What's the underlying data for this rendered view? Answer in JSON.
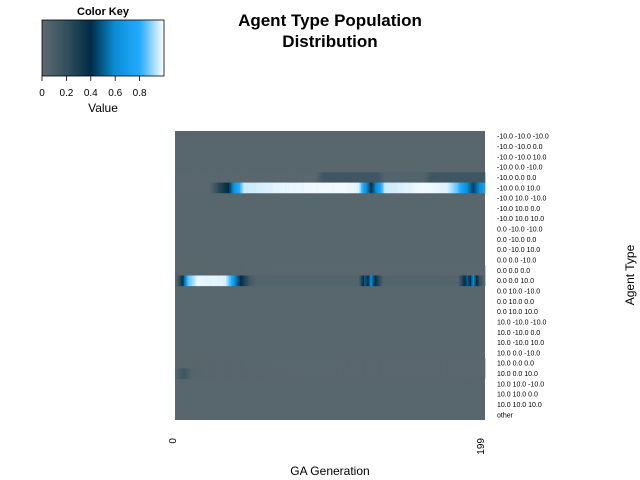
{
  "chart_data": {
    "type": "heatmap",
    "title_lines": [
      "Agent Type Population",
      "Distribution"
    ],
    "xlabel": "GA Generation",
    "ylabel": "Agent Type",
    "x_tick_labels": [
      "0",
      "199"
    ],
    "x_range": [
      0,
      199
    ],
    "color_key": {
      "title": "Color Key",
      "label": "Value",
      "ticks": [
        "0",
        "0.2",
        "0.4",
        "0.6",
        "0.8"
      ],
      "range": [
        0,
        1
      ],
      "colors": [
        "#5f6a70",
        "#33505e",
        "#002b45",
        "#0a8fd6",
        "#22aaff",
        "#ffffff"
      ]
    },
    "row_labels": [
      "-10.0 -10.0 -10.0",
      "-10.0 -10.0 0.0",
      "-10.0 -10.0 10.0",
      "-10.0 0.0 -10.0",
      "-10.0 0.0 0.0",
      "-10.0 0.0 10.0",
      "-10.0 10.0 -10.0",
      "-10.0 10.0 0.0",
      "-10.0 10.0 10.0",
      "0.0 -10.0 -10.0",
      "0.0 -10.0 0.0",
      "0.0 -10.0 10.0",
      "0.0 0.0 -10.0",
      "0.0 0.0 0.0",
      "0.0 0.0 10.0",
      "0.0 10.0 -10.0",
      "0.0 10.0 0.0",
      "0.0 10.0 10.0",
      "10.0 -10.0 -10.0",
      "10.0 -10.0 0.0",
      "10.0 -10.0 10.0",
      "10.0 0.0 -10.0",
      "10.0 0.0 0.0",
      "10.0 0.0 10.0",
      "10.0 10.0 -10.0",
      "10.0 10.0 0.0",
      "10.0 10.0 10.0",
      "other"
    ],
    "row_profiles": [
      {
        "row": 4,
        "points": [
          [
            0,
            0.02
          ],
          [
            90,
            0.02
          ],
          [
            95,
            0.15
          ],
          [
            130,
            0.15
          ],
          [
            135,
            0.05
          ],
          [
            160,
            0.05
          ],
          [
            165,
            0.15
          ],
          [
            199,
            0.15
          ]
        ]
      },
      {
        "row": 5,
        "points": [
          [
            0,
            0.02
          ],
          [
            22,
            0.02
          ],
          [
            28,
            0.25
          ],
          [
            34,
            0.4
          ],
          [
            38,
            0.65
          ],
          [
            44,
            0.95
          ],
          [
            70,
            0.98
          ],
          [
            110,
            0.99
          ],
          [
            118,
            0.97
          ],
          [
            122,
            0.7
          ],
          [
            126,
            0.4
          ],
          [
            130,
            0.65
          ],
          [
            135,
            0.95
          ],
          [
            160,
            0.99
          ],
          [
            175,
            0.97
          ],
          [
            182,
            0.85
          ],
          [
            188,
            0.6
          ],
          [
            192,
            0.45
          ],
          [
            196,
            0.6
          ],
          [
            199,
            0.7
          ]
        ]
      },
      {
        "row": 14,
        "points": [
          [
            0,
            0.02
          ],
          [
            3,
            0.25
          ],
          [
            5,
            0.45
          ],
          [
            8,
            0.85
          ],
          [
            14,
            0.98
          ],
          [
            32,
            0.97
          ],
          [
            36,
            0.8
          ],
          [
            38,
            0.6
          ],
          [
            40,
            0.5
          ],
          [
            44,
            0.3
          ],
          [
            48,
            0.12
          ],
          [
            52,
            0.05
          ],
          [
            118,
            0.05
          ],
          [
            122,
            0.5
          ],
          [
            124,
            0.4
          ],
          [
            126,
            0.6
          ],
          [
            130,
            0.3
          ],
          [
            134,
            0.05
          ],
          [
            182,
            0.05
          ],
          [
            186,
            0.35
          ],
          [
            188,
            0.5
          ],
          [
            190,
            0.4
          ],
          [
            192,
            0.6
          ],
          [
            196,
            0.2
          ],
          [
            199,
            0.05
          ]
        ]
      },
      {
        "row": 23,
        "points": [
          [
            0,
            0.05
          ],
          [
            2,
            0.1
          ],
          [
            6,
            0.15
          ],
          [
            10,
            0.05
          ],
          [
            20,
            0.03
          ],
          [
            199,
            0.02
          ]
        ]
      },
      {
        "row": 13,
        "points": [
          [
            0,
            0.03
          ],
          [
            199,
            0.02
          ]
        ]
      },
      {
        "row": 22,
        "points": [
          [
            0,
            0.03
          ],
          [
            199,
            0.02
          ]
        ]
      }
    ]
  }
}
